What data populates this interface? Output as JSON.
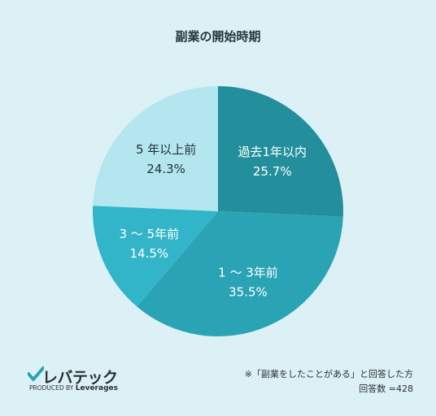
{
  "chart_data": {
    "type": "pie",
    "title": "副業の開始時期",
    "slices": [
      {
        "label": "過去1年以内",
        "value": 25.7,
        "value_text": "25.7%",
        "color": "#248f9c",
        "text_color": "#ffffff"
      },
      {
        "label": "1 ～ 3年前",
        "value": 35.5,
        "value_text": "35.5%",
        "color": "#2aa3b5",
        "text_color": "#ffffff"
      },
      {
        "label": "3 ～ 5年前",
        "value": 14.5,
        "value_text": "14.5%",
        "color": "#33b5c9",
        "text_color": "#ffffff"
      },
      {
        "label": "5 年以上前",
        "value": 24.3,
        "value_text": "24.3%",
        "color": "#b3e6ee",
        "text_color": "#24323a"
      }
    ],
    "start_angle_deg": 0,
    "direction": "clockwise"
  },
  "logo": {
    "name": "レバテック",
    "sub_prefix": "PRODUCED BY",
    "sub_brand": "Leverages"
  },
  "footnote": {
    "line1": "※「副業をしたことがある」と回答した方",
    "line2": "回答数 =428"
  }
}
